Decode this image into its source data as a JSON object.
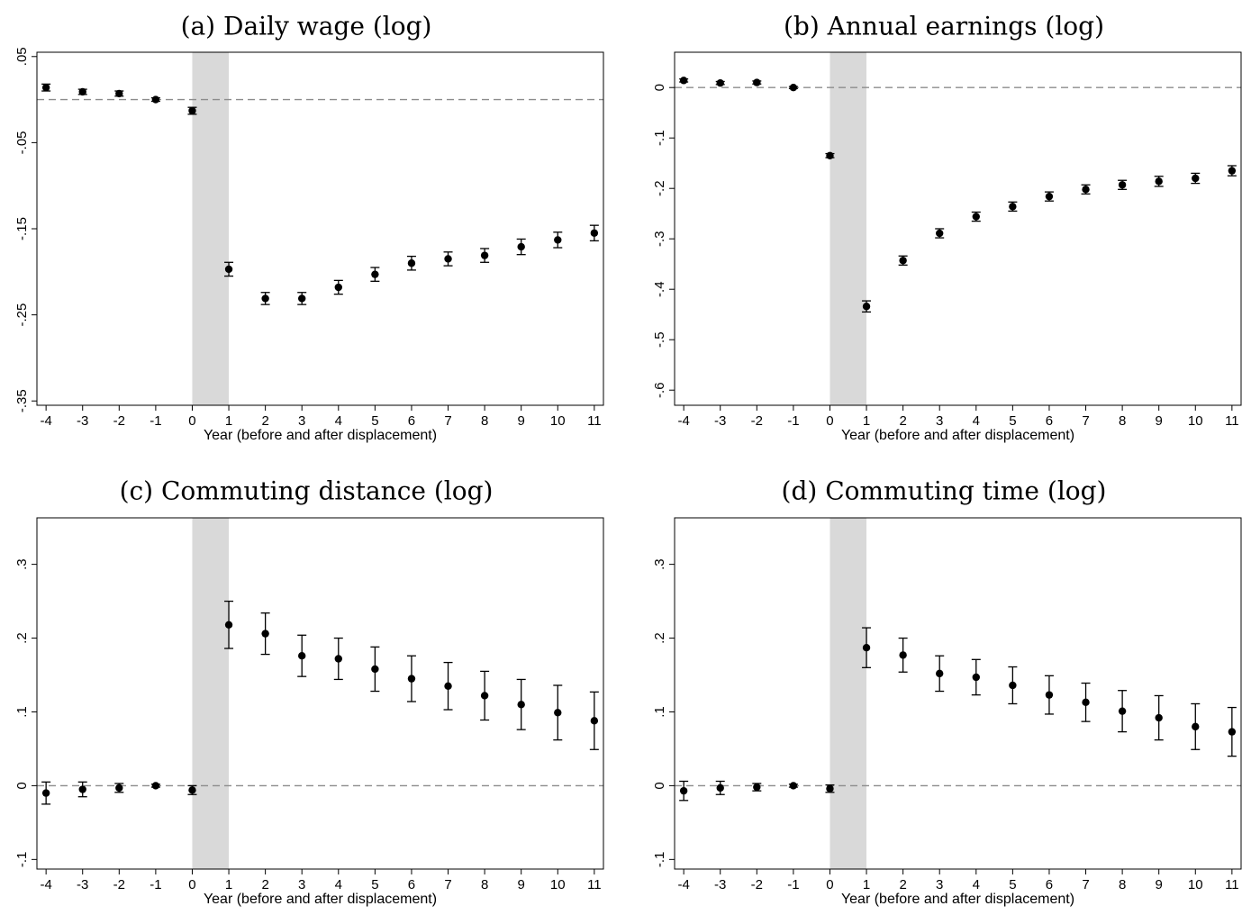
{
  "chart_data": [
    {
      "type": "scatter",
      "title": "(a) Daily wage (log)",
      "xlabel": "Year (before and after displacement)",
      "ylabel": "",
      "xlim": [
        -4.25,
        11.25
      ],
      "ylim": [
        -0.355,
        0.055
      ],
      "x_ticks": [
        -4,
        -3,
        -2,
        -1,
        0,
        1,
        2,
        3,
        4,
        5,
        6,
        7,
        8,
        9,
        10,
        11
      ],
      "y_ticks": [
        0.05,
        -0.05,
        -0.15,
        -0.25,
        -0.35
      ],
      "y_tick_labels": [
        ".05",
        "-.05",
        "-.15",
        "-.25",
        "-.35"
      ],
      "shaded_x": [
        0,
        1
      ],
      "reference_line_y": 0,
      "grid": false,
      "series": [
        {
          "x": [
            -4,
            -3,
            -2,
            -1,
            0,
            1,
            2,
            3,
            4,
            5,
            6,
            7,
            8,
            9,
            10,
            11
          ],
          "y": [
            0.014,
            0.009,
            0.007,
            0.0,
            -0.013,
            -0.197,
            -0.231,
            -0.231,
            -0.218,
            -0.203,
            -0.19,
            -0.185,
            -0.181,
            -0.171,
            -0.163,
            -0.155
          ],
          "ci_low": [
            0.01,
            0.006,
            0.004,
            -0.002,
            -0.017,
            -0.205,
            -0.238,
            -0.238,
            -0.226,
            -0.211,
            -0.198,
            -0.193,
            -0.189,
            -0.18,
            -0.172,
            -0.164
          ],
          "ci_high": [
            0.018,
            0.012,
            0.01,
            0.002,
            -0.009,
            -0.189,
            -0.224,
            -0.224,
            -0.21,
            -0.195,
            -0.182,
            -0.177,
            -0.173,
            -0.162,
            -0.154,
            -0.146
          ]
        }
      ]
    },
    {
      "type": "scatter",
      "title": "(b) Annual earnings (log)",
      "xlabel": "Year (before and after displacement)",
      "ylabel": "",
      "xlim": [
        -4.25,
        11.25
      ],
      "ylim": [
        -0.63,
        0.07
      ],
      "x_ticks": [
        -4,
        -3,
        -2,
        -1,
        0,
        1,
        2,
        3,
        4,
        5,
        6,
        7,
        8,
        9,
        10,
        11
      ],
      "y_ticks": [
        0,
        -0.1,
        -0.2,
        -0.3,
        -0.4,
        -0.5,
        -0.6
      ],
      "y_tick_labels": [
        "0",
        "-.1",
        "-.2",
        "-.3",
        "-.4",
        "-.5",
        "-.6"
      ],
      "shaded_x": [
        0,
        1
      ],
      "reference_line_y": 0,
      "grid": false,
      "series": [
        {
          "x": [
            -4,
            -3,
            -2,
            -1,
            0,
            1,
            2,
            3,
            4,
            5,
            6,
            7,
            8,
            9,
            10,
            11
          ],
          "y": [
            0.014,
            0.009,
            0.01,
            0.0,
            -0.135,
            -0.434,
            -0.343,
            -0.289,
            -0.256,
            -0.236,
            -0.216,
            -0.202,
            -0.193,
            -0.186,
            -0.18,
            -0.165
          ],
          "ci_low": [
            0.011,
            0.006,
            0.007,
            -0.002,
            -0.139,
            -0.445,
            -0.352,
            -0.298,
            -0.265,
            -0.245,
            -0.225,
            -0.211,
            -0.202,
            -0.196,
            -0.19,
            -0.175
          ],
          "ci_high": [
            0.017,
            0.012,
            0.013,
            0.002,
            -0.131,
            -0.423,
            -0.334,
            -0.28,
            -0.247,
            -0.227,
            -0.207,
            -0.193,
            -0.184,
            -0.176,
            -0.17,
            -0.155
          ]
        }
      ]
    },
    {
      "type": "scatter",
      "title": "(c) Commuting distance (log)",
      "xlabel": "Year (before and after displacement)",
      "ylabel": "",
      "xlim": [
        -4.25,
        11.25
      ],
      "ylim": [
        -0.113,
        0.363
      ],
      "x_ticks": [
        -4,
        -3,
        -2,
        -1,
        0,
        1,
        2,
        3,
        4,
        5,
        6,
        7,
        8,
        9,
        10,
        11
      ],
      "y_ticks": [
        -0.1,
        0,
        0.1,
        0.2,
        0.3
      ],
      "y_tick_labels": [
        "-.1",
        "0",
        ".1",
        ".2",
        ".3"
      ],
      "shaded_x": [
        0,
        1
      ],
      "reference_line_y": 0,
      "grid": false,
      "series": [
        {
          "x": [
            -4,
            -3,
            -2,
            -1,
            0,
            1,
            2,
            3,
            4,
            5,
            6,
            7,
            8,
            9,
            10,
            11
          ],
          "y": [
            -0.01,
            -0.005,
            -0.003,
            0.0,
            -0.006,
            0.218,
            0.206,
            0.176,
            0.172,
            0.158,
            0.145,
            0.135,
            0.122,
            0.11,
            0.099,
            0.088
          ],
          "ci_low": [
            -0.025,
            -0.015,
            -0.009,
            -0.002,
            -0.012,
            0.186,
            0.178,
            0.148,
            0.144,
            0.128,
            0.114,
            0.103,
            0.089,
            0.076,
            0.062,
            0.049
          ],
          "ci_high": [
            0.005,
            0.005,
            0.003,
            0.002,
            0.0,
            0.25,
            0.234,
            0.204,
            0.2,
            0.188,
            0.176,
            0.167,
            0.155,
            0.144,
            0.136,
            0.127
          ]
        }
      ]
    },
    {
      "type": "scatter",
      "title": "(d) Commuting time (log)",
      "xlabel": "Year (before and after displacement)",
      "ylabel": "",
      "xlim": [
        -4.25,
        11.25
      ],
      "ylim": [
        -0.113,
        0.363
      ],
      "x_ticks": [
        -4,
        -3,
        -2,
        -1,
        0,
        1,
        2,
        3,
        4,
        5,
        6,
        7,
        8,
        9,
        10,
        11
      ],
      "y_ticks": [
        -0.1,
        0,
        0.1,
        0.2,
        0.3
      ],
      "y_tick_labels": [
        "-.1",
        "0",
        ".1",
        ".2",
        ".3"
      ],
      "shaded_x": [
        0,
        1
      ],
      "reference_line_y": 0,
      "grid": false,
      "series": [
        {
          "x": [
            -4,
            -3,
            -2,
            -1,
            0,
            1,
            2,
            3,
            4,
            5,
            6,
            7,
            8,
            9,
            10,
            11
          ],
          "y": [
            -0.007,
            -0.003,
            -0.002,
            0.0,
            -0.004,
            0.187,
            0.177,
            0.152,
            0.147,
            0.136,
            0.123,
            0.113,
            0.101,
            0.092,
            0.08,
            0.073
          ],
          "ci_low": [
            -0.02,
            -0.012,
            -0.007,
            -0.002,
            -0.009,
            0.16,
            0.154,
            0.128,
            0.123,
            0.111,
            0.097,
            0.087,
            0.073,
            0.062,
            0.049,
            0.04
          ],
          "ci_high": [
            0.006,
            0.006,
            0.003,
            0.002,
            0.001,
            0.214,
            0.2,
            0.176,
            0.171,
            0.161,
            0.149,
            0.139,
            0.129,
            0.122,
            0.111,
            0.106
          ]
        }
      ]
    }
  ]
}
